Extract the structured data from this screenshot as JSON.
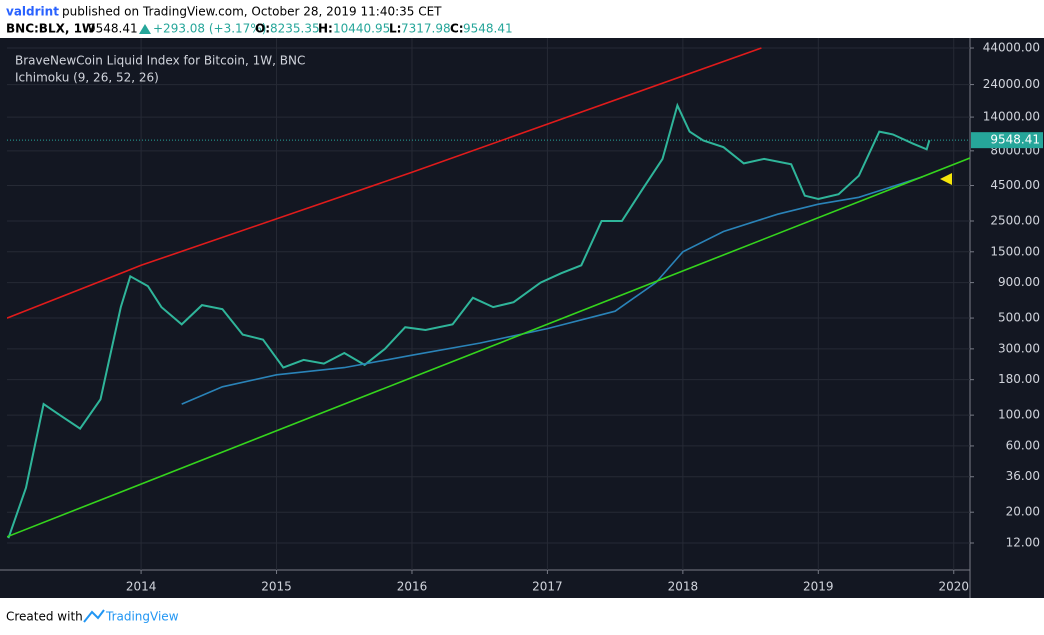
{
  "header": {
    "user": "valdrint",
    "published": "published on TradingView.com, October 28, 2019 11:40:35 CET",
    "symbol": "BNC:BLX, 1W",
    "close": "9548.41",
    "change": "+293.08 (+3.17%)",
    "o_label": "O:",
    "o": "8235.35",
    "h_label": "H:",
    "h": "10440.95",
    "l_label": "L:",
    "l": "7317.98",
    "c_label": "C:",
    "c": "9548.41"
  },
  "footer": {
    "created": "Created with",
    "brand": "TradingView"
  },
  "chart_data": {
    "type": "line",
    "title": "BraveNewCoin Liquid Index for Bitcoin, 1W, BNC",
    "subtitle": "Ichimoku (9, 26, 52, 26)",
    "log_scale": true,
    "grid": true,
    "xlim": [
      2013.01,
      2020.12
    ],
    "xticks": [
      2014,
      2015,
      2016,
      2017,
      2018,
      2019,
      2020
    ],
    "ylim": [
      7.67,
      51950
    ],
    "yticks": [
      {
        "value": 44000,
        "label": "44000.00"
      },
      {
        "value": 24000,
        "label": "24000.00"
      },
      {
        "value": 14000,
        "label": "14000.00"
      },
      {
        "value": 8000,
        "label": "8000.00"
      },
      {
        "value": 4500,
        "label": "4500.00"
      },
      {
        "value": 2500,
        "label": "2500.00"
      },
      {
        "value": 1500,
        "label": "1500.00"
      },
      {
        "value": 900,
        "label": "900.00"
      },
      {
        "value": 500,
        "label": "500.00"
      },
      {
        "value": 300,
        "label": "300.00"
      },
      {
        "value": 180,
        "label": "180.00"
      },
      {
        "value": 100,
        "label": "100.00"
      },
      {
        "value": 60,
        "label": "60.00"
      },
      {
        "value": 36,
        "label": "36.00"
      },
      {
        "value": 20,
        "label": "20.00"
      },
      {
        "value": 12,
        "label": "12.00"
      }
    ],
    "last_price": 9548.41,
    "last_price_color": "#26a69a",
    "series": [
      {
        "color": "#2fb59a",
        "x": [
          2013.02,
          2013.15,
          2013.28,
          2013.4,
          2013.55,
          2013.7,
          2013.85,
          2013.92,
          2014.05,
          2014.15,
          2014.3,
          2014.45,
          2014.6,
          2014.75,
          2014.9,
          2015.05,
          2015.2,
          2015.35,
          2015.5,
          2015.65,
          2015.8,
          2015.95,
          2016.1,
          2016.3,
          2016.45,
          2016.6,
          2016.75,
          2016.95,
          2017.1,
          2017.25,
          2017.4,
          2017.55,
          2017.7,
          2017.85,
          2017.96,
          2018.05,
          2018.15,
          2018.3,
          2018.45,
          2018.6,
          2018.8,
          2018.9,
          2019.0,
          2019.15,
          2019.3,
          2019.45,
          2019.55,
          2019.7,
          2019.8,
          2019.82
        ],
        "values": [
          13,
          30,
          120,
          100,
          80,
          130,
          600,
          1000,
          850,
          600,
          450,
          620,
          580,
          380,
          350,
          220,
          250,
          235,
          280,
          230,
          300,
          430,
          410,
          450,
          700,
          600,
          650,
          900,
          1050,
          1200,
          2500,
          2500,
          4200,
          7000,
          17000,
          11000,
          9500,
          8500,
          6500,
          7000,
          6400,
          3800,
          3600,
          3900,
          5300,
          11000,
          10500,
          9000,
          8200,
          9548.41
        ]
      },
      {
        "color": "#2a83b8",
        "x": [
          2014.3,
          2014.6,
          2015.0,
          2015.5,
          2016.0,
          2016.5,
          2017.0,
          2017.5,
          2017.8,
          2018.0,
          2018.3,
          2018.7,
          2019.0,
          2019.3,
          2019.6,
          2019.77
        ],
        "values": [
          120,
          160,
          195,
          220,
          270,
          330,
          420,
          560,
          900,
          1500,
          2100,
          2800,
          3300,
          3700,
          4600,
          5200
        ]
      },
      {
        "color": "#e01b1b",
        "x": [
          2013.01,
          2014.0,
          2016.0,
          2018.58
        ],
        "values": [
          500,
          1200,
          5600,
          44000
        ]
      },
      {
        "color": "#35d41d",
        "x": [
          2013.01,
          2020.12
        ],
        "values": [
          13.3,
          7100
        ]
      }
    ]
  }
}
